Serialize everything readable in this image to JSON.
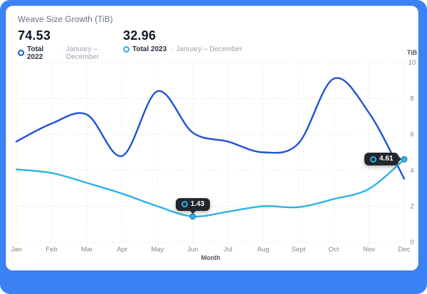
{
  "colors": {
    "frame": "#3d82f4",
    "card_bg": "#ffffff",
    "tooltip_bg": "#23272d",
    "grid": "#e6e8ec",
    "axis_text": "#7d8694"
  },
  "card": {
    "title": "Weave Size Growth (TiB)",
    "meta_separator": "·",
    "stats": [
      {
        "value": "74.53",
        "label": "Total 2022",
        "period": "January – December"
      },
      {
        "value": "32.96",
        "label": "Total 2023",
        "period": "January – December"
      }
    ]
  },
  "chart_data": {
    "type": "line",
    "title": "Weave Size Growth (TiB)",
    "xlabel": "Month",
    "ylabel": "TiB",
    "ylim": [
      0,
      10
    ],
    "y_ticks": [
      0,
      2,
      4,
      6,
      8,
      10
    ],
    "grid": true,
    "legend_position": "top-left",
    "categories": [
      "Jan",
      "Feb",
      "Mar",
      "Apr",
      "May",
      "Jun",
      "Jul",
      "Aug",
      "Sept",
      "Oct",
      "Nov",
      "Dec"
    ],
    "series": [
      {
        "name": "Total 2022",
        "color": "#1f53d4",
        "total": 74.53,
        "values": [
          5.6,
          6.6,
          7.1,
          4.8,
          8.4,
          6.1,
          5.6,
          5.0,
          5.5,
          9.1,
          7.2,
          3.53
        ]
      },
      {
        "name": "Total 2023",
        "color": "#2bb3e6",
        "total": 32.96,
        "values": [
          4.05,
          3.85,
          3.3,
          2.7,
          2.0,
          1.43,
          1.7,
          2.0,
          1.95,
          2.4,
          2.97,
          4.61
        ]
      }
    ],
    "annotations": [
      {
        "series": "Total 2023",
        "category": "Jun",
        "index": 5,
        "label": "1.43",
        "placement": "top"
      },
      {
        "series": "Total 2023",
        "category": "Dec",
        "index": 11,
        "label": "4.61",
        "placement": "left"
      }
    ]
  }
}
